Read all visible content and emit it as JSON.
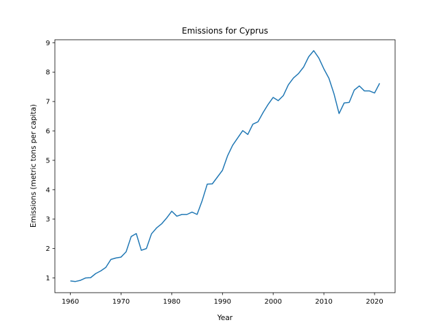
{
  "chart_data": {
    "type": "line",
    "title": "Emissions for Cyprus",
    "xlabel": "Year",
    "ylabel": "Emissions (metric tons per capita)",
    "xlim": [
      1956.95,
      2024.05
    ],
    "ylim": [
      0.5,
      9.1
    ],
    "xticks": [
      1960,
      1970,
      1980,
      1990,
      2000,
      2010,
      2020
    ],
    "yticks": [
      1,
      2,
      3,
      4,
      5,
      6,
      7,
      8,
      9
    ],
    "grid": false,
    "line_color": "#1f77b4",
    "series": [
      {
        "x": [
          1960,
          1961,
          1962,
          1963,
          1964,
          1965,
          1966,
          1967,
          1968,
          1969,
          1970,
          1971,
          1972,
          1973,
          1974,
          1975,
          1976,
          1977,
          1978,
          1979,
          1980,
          1981,
          1982,
          1983,
          1984,
          1985,
          1986,
          1987,
          1988,
          1989,
          1990,
          1991,
          1992,
          1993,
          1994,
          1995,
          1996,
          1997,
          1998,
          1999,
          2000,
          2001,
          2002,
          2003,
          2004,
          2005,
          2006,
          2007,
          2008,
          2009,
          2010,
          2011,
          2012,
          2013,
          2014,
          2015,
          2016,
          2017,
          2018,
          2019,
          2020,
          2021
        ],
        "values": [
          0.9,
          0.88,
          0.92,
          1.0,
          1.01,
          1.15,
          1.24,
          1.36,
          1.63,
          1.68,
          1.71,
          1.89,
          2.41,
          2.51,
          1.94,
          2.0,
          2.5,
          2.7,
          2.84,
          3.04,
          3.27,
          3.1,
          3.16,
          3.16,
          3.24,
          3.16,
          3.63,
          4.19,
          4.2,
          4.43,
          4.66,
          5.15,
          5.51,
          5.76,
          6.01,
          5.88,
          6.23,
          6.31,
          6.62,
          6.9,
          7.14,
          7.03,
          7.2,
          7.57,
          7.8,
          7.95,
          8.17,
          8.52,
          8.73,
          8.48,
          8.11,
          7.79,
          7.26,
          6.59,
          6.95,
          6.97,
          7.39,
          7.53,
          7.36,
          7.36,
          7.29,
          7.62
        ]
      }
    ]
  }
}
